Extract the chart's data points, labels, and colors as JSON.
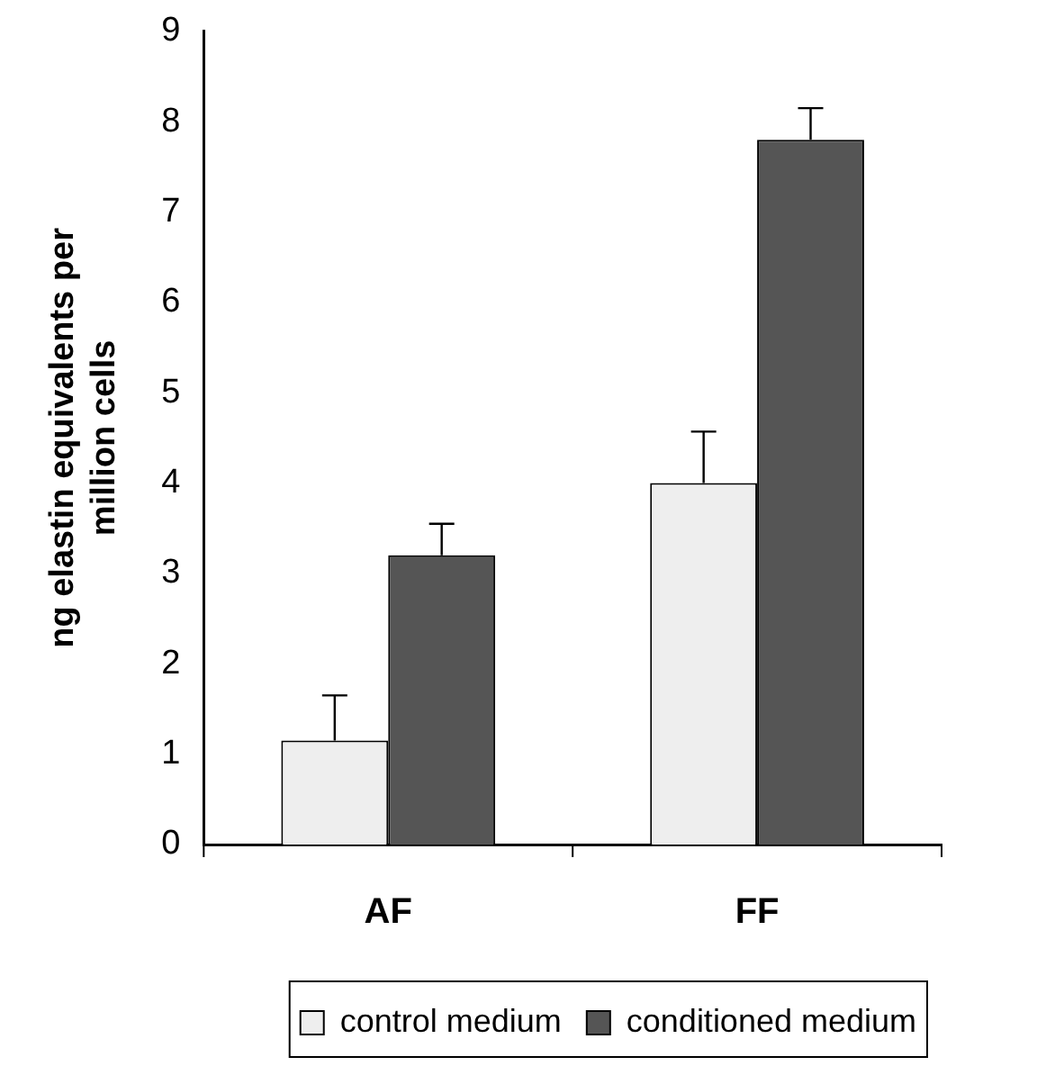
{
  "chart_data": {
    "type": "bar",
    "ylabel": "ng elastin equivalents per million cells",
    "categories": [
      "AF",
      "FF"
    ],
    "series": [
      {
        "name": "control medium",
        "color": "#eeeeee",
        "values": [
          1.15,
          4.0
        ],
        "errors": [
          [
            1.15,
            1.65
          ],
          [
            4.0,
            4.57
          ]
        ]
      },
      {
        "name": "conditioned medium",
        "color": "#555555",
        "values": [
          3.2,
          7.8
        ],
        "errors": [
          [
            3.2,
            3.55
          ],
          [
            7.8,
            8.15
          ]
        ]
      }
    ],
    "ylim": [
      0,
      9
    ],
    "yticks": [
      0,
      1,
      2,
      3,
      4,
      5,
      6,
      7,
      8,
      9
    ],
    "grid": false,
    "legend": "bottom"
  }
}
